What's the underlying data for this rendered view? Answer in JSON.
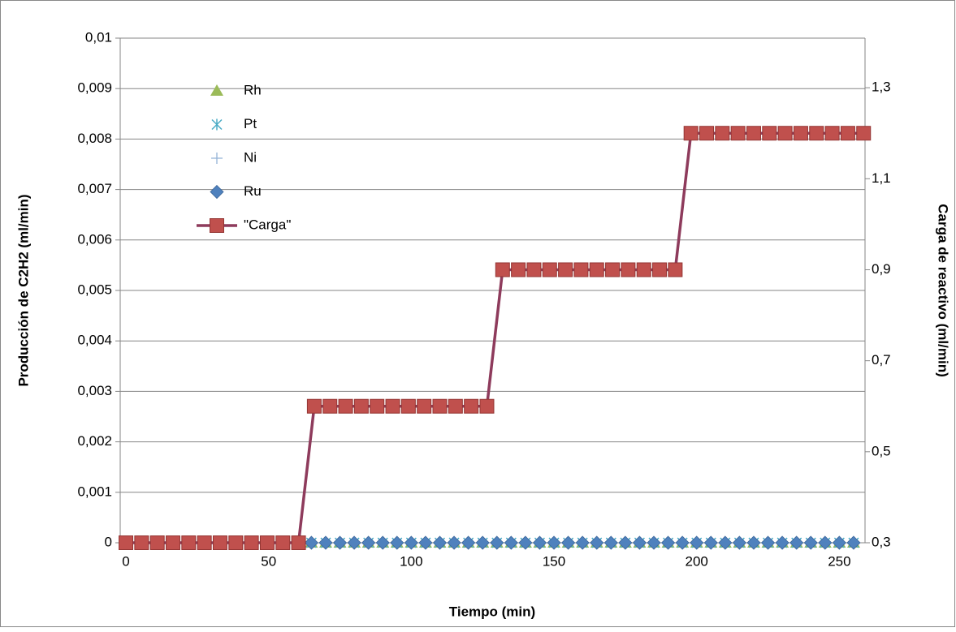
{
  "chart_data": {
    "type": "scatter",
    "x_label": "Tiempo (min)",
    "y_label": "Producción de C2H2 (ml/min)",
    "y2_label": "Carga de reactivo (ml/min)",
    "xlim": [
      -2,
      259
    ],
    "xticks": [
      0,
      50,
      100,
      150,
      200,
      250
    ],
    "ylim": [
      0,
      0.01
    ],
    "yticks": [
      0,
      {
        "value": 0.001,
        "label": "0,001"
      },
      {
        "value": 0.002,
        "label": "0,002"
      },
      {
        "value": 0.003,
        "label": "0,003"
      },
      {
        "value": 0.004,
        "label": "0,004"
      },
      {
        "value": 0.005,
        "label": "0,005"
      },
      {
        "value": 0.006,
        "label": "0,006"
      },
      {
        "value": 0.007,
        "label": "0,007"
      },
      {
        "value": 0.008,
        "label": "0,008"
      },
      {
        "value": 0.009,
        "label": "0,009"
      },
      {
        "value": 0.01,
        "label": "0,01"
      }
    ],
    "y2lim": [
      0.3,
      1.409
    ],
    "y2ticks": [
      {
        "value": 0.3,
        "label": "0,3"
      },
      {
        "value": 0.5,
        "label": "0,5"
      },
      {
        "value": 0.7,
        "label": "0,7"
      },
      {
        "value": 0.9,
        "label": "0,9"
      },
      {
        "value": 1.1,
        "label": "1,1"
      },
      {
        "value": 1.3,
        "label": "1,3"
      }
    ],
    "grid": true,
    "legend": "upper left",
    "series": [
      {
        "name": "Rh",
        "color": "#9bbb59",
        "marker": "triangle",
        "x": [
          65,
          70,
          75,
          80,
          85,
          90,
          95,
          100,
          105,
          110,
          115,
          120,
          125,
          130,
          135,
          140,
          145,
          150,
          155,
          160,
          165,
          170,
          175,
          180,
          185,
          190,
          195,
          200,
          205,
          210,
          215,
          220,
          225,
          230,
          235,
          240,
          245,
          250,
          255
        ],
        "values": [
          0,
          0,
          0,
          0,
          0,
          0,
          0,
          0,
          0,
          0,
          0,
          0,
          0,
          0,
          0,
          0,
          0,
          0,
          0,
          0,
          0,
          0,
          0,
          0,
          0,
          0,
          0,
          0,
          0,
          0,
          0,
          0,
          0,
          0,
          0,
          0,
          0,
          0,
          0
        ]
      },
      {
        "name": "Pt",
        "color": "#4bacc6",
        "marker": "asterisk",
        "x": [
          65,
          70,
          75,
          80,
          85,
          90,
          95,
          100,
          105,
          110,
          115,
          120,
          125,
          130,
          135,
          140,
          145,
          150,
          155,
          160,
          165,
          170,
          175,
          180,
          185,
          190,
          195,
          200,
          205,
          210,
          215,
          220,
          225,
          230,
          235,
          240,
          245,
          250,
          255
        ],
        "values": [
          0,
          0,
          0,
          0,
          0,
          0,
          0,
          0,
          0,
          0,
          0,
          0,
          0,
          0,
          0,
          0,
          0,
          0,
          0,
          0,
          0,
          0,
          0,
          0,
          0,
          0,
          0,
          0,
          0,
          0,
          0,
          0,
          0,
          0,
          0,
          0,
          0,
          0,
          0
        ]
      },
      {
        "name": "Ni",
        "color": "#95b3d7",
        "marker": "plus",
        "x": [
          65,
          70,
          75,
          80,
          85,
          90,
          95,
          100,
          105,
          110,
          115,
          120,
          125,
          130,
          135,
          140,
          145,
          150,
          155,
          160,
          165,
          170,
          175,
          180,
          185,
          190,
          195,
          200,
          205,
          210,
          215,
          220,
          225,
          230,
          235,
          240,
          245,
          250,
          255
        ],
        "values": [
          0,
          0,
          0,
          0,
          0,
          0,
          0,
          0,
          0,
          0,
          0,
          0,
          0,
          0,
          0,
          0,
          0,
          0,
          0,
          0,
          0,
          0,
          0,
          0,
          0,
          0,
          0,
          0,
          0,
          0,
          0,
          0,
          0,
          0,
          0,
          0,
          0,
          0,
          0
        ]
      },
      {
        "name": "Ru",
        "color": "#4f81bd",
        "marker": "diamond",
        "x": [
          65,
          70,
          75,
          80,
          85,
          90,
          95,
          100,
          105,
          110,
          115,
          120,
          125,
          130,
          135,
          140,
          145,
          150,
          155,
          160,
          165,
          170,
          175,
          180,
          185,
          190,
          195,
          200,
          205,
          210,
          215,
          220,
          225,
          230,
          235,
          240,
          245,
          250,
          255
        ],
        "values": [
          0,
          0,
          0,
          0,
          0,
          0,
          0,
          0,
          0,
          0,
          0,
          0,
          0,
          0,
          0,
          0,
          0,
          0,
          0,
          0,
          0,
          0,
          0,
          0,
          0,
          0,
          0,
          0,
          0,
          0,
          0,
          0,
          0,
          0,
          0,
          0,
          0,
          0,
          0
        ]
      },
      {
        "name": "\"Carga\"",
        "color": "#8e3b5c",
        "marker": "square",
        "marker_color": "#c0504d",
        "axis": "y2",
        "x": [
          0,
          5.5,
          11,
          16.5,
          22,
          27.5,
          33,
          38.5,
          44,
          49.5,
          55,
          60.5,
          66,
          71.5,
          77,
          82.5,
          88,
          93.5,
          99,
          104.5,
          110,
          115.5,
          121,
          126.5,
          132,
          137.5,
          143,
          148.5,
          154,
          159.5,
          165,
          170.5,
          176,
          181.5,
          187,
          192.5,
          198,
          203.5,
          209,
          214.5,
          220,
          225.5,
          231,
          236.5,
          242,
          247.5,
          253,
          258.5
        ],
        "values": [
          0.3,
          0.3,
          0.3,
          0.3,
          0.3,
          0.3,
          0.3,
          0.3,
          0.3,
          0.3,
          0.3,
          0.3,
          0.6,
          0.6,
          0.6,
          0.6,
          0.6,
          0.6,
          0.6,
          0.6,
          0.6,
          0.6,
          0.6,
          0.6,
          0.9,
          0.9,
          0.9,
          0.9,
          0.9,
          0.9,
          0.9,
          0.9,
          0.9,
          0.9,
          0.9,
          0.9,
          1.2,
          1.2,
          1.2,
          1.2,
          1.2,
          1.2,
          1.2,
          1.2,
          1.2,
          1.2,
          1.2,
          1.2
        ]
      }
    ]
  }
}
